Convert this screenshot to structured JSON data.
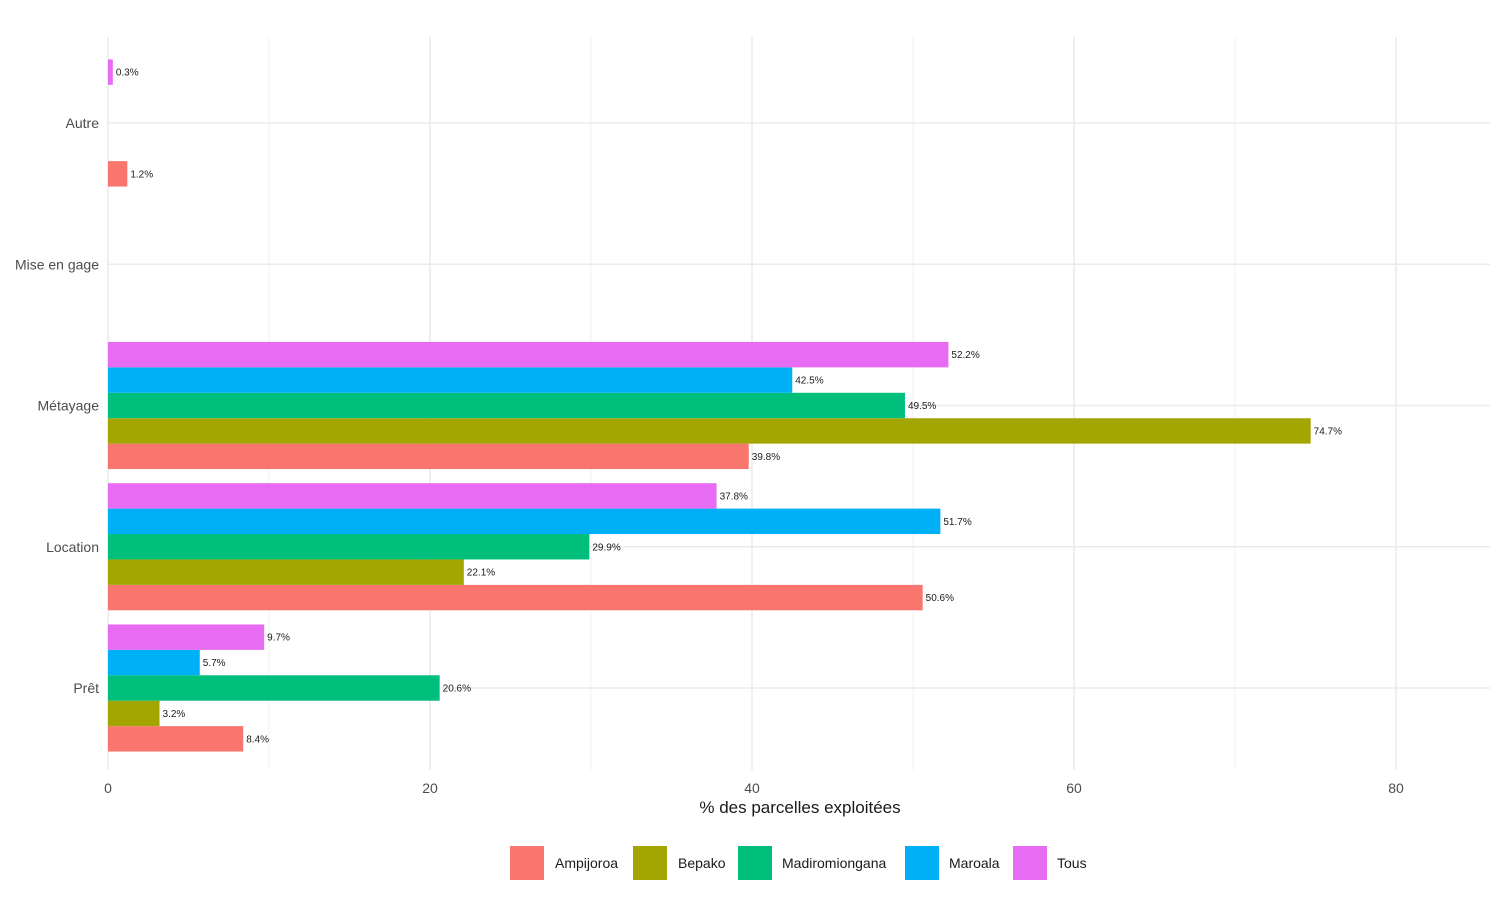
{
  "chart_data": {
    "type": "bar",
    "orientation": "horizontal",
    "title": "",
    "xlabel": "% des parcelles exploitées",
    "ylabel": "",
    "xlim": [
      0,
      86
    ],
    "x_ticks": [
      "0",
      "20",
      "40",
      "60",
      "80"
    ],
    "x_tick_values": [
      0,
      20,
      40,
      60,
      80
    ],
    "grid": true,
    "legend_position": "bottom",
    "categories": [
      "Prêt",
      "Location",
      "Métayage",
      "Mise en gage",
      "Autre"
    ],
    "series": [
      {
        "name": "Ampijoroa",
        "color": "#F8766D",
        "values": [
          8.4,
          50.6,
          39.8,
          null,
          1.2
        ],
        "labels": [
          "8.4%",
          "50.6%",
          "39.8%",
          null,
          "1.2%"
        ]
      },
      {
        "name": "Bepako",
        "color": "#A3A500",
        "values": [
          3.2,
          22.1,
          74.7,
          null,
          null
        ],
        "labels": [
          "3.2%",
          "22.1%",
          "74.7%",
          null,
          null
        ]
      },
      {
        "name": "Madiromiongana",
        "color": "#00BF7D",
        "values": [
          20.6,
          29.9,
          49.5,
          null,
          null
        ],
        "labels": [
          "20.6%",
          "29.9%",
          "49.5%",
          null,
          null
        ]
      },
      {
        "name": "Maroala",
        "color": "#00B0F6",
        "values": [
          5.7,
          51.7,
          42.5,
          null,
          null
        ],
        "labels": [
          "5.7%",
          "51.7%",
          "42.5%",
          null,
          null
        ]
      },
      {
        "name": "Tous",
        "color": "#E76BF3",
        "values": [
          9.7,
          37.8,
          52.2,
          null,
          0.3
        ],
        "labels": [
          "9.7%",
          "37.8%",
          "52.2%",
          null,
          "0.3%"
        ]
      }
    ]
  }
}
